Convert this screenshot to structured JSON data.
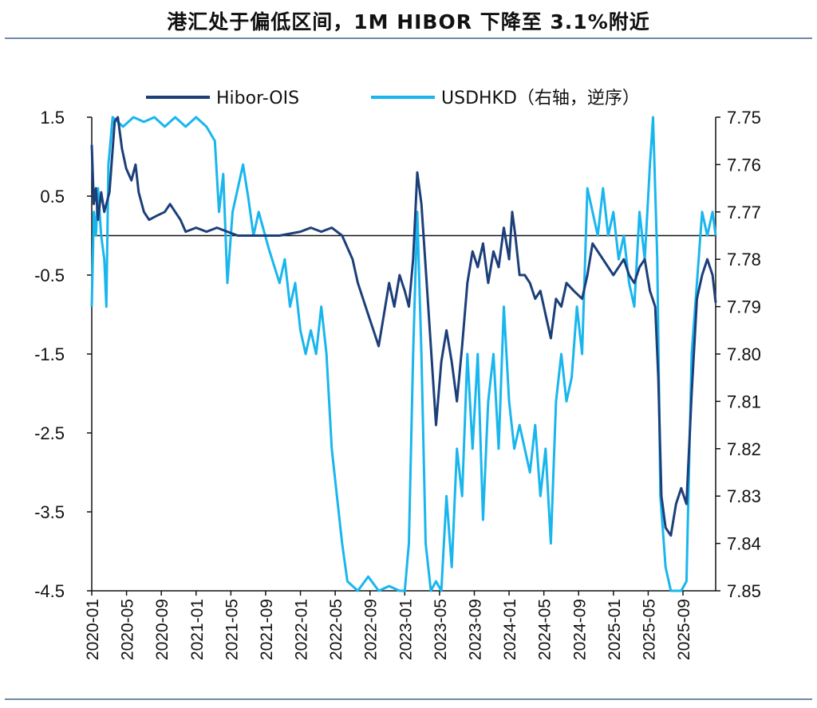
{
  "title": "港汇处于偏低区间，1M HIBOR 下降至 3.1%附近",
  "chart_data": {
    "type": "line",
    "title": "港汇处于偏低区间，1M HIBOR 下降至 3.1%附近",
    "x_range": [
      "2020-01",
      "2025-12"
    ],
    "x_tick_labels": [
      "2020-01",
      "2020-05",
      "2020-09",
      "2021-01",
      "2021-05",
      "2021-09",
      "2022-01",
      "2022-05",
      "2022-09",
      "2023-01",
      "2023-05",
      "2023-09",
      "2024-01",
      "2024-05",
      "2024-09",
      "2025-01",
      "2025-05",
      "2025-09"
    ],
    "left_axis": {
      "ylim": [
        -4.5,
        1.5
      ],
      "ticks": [
        "1.5",
        "0.5",
        "-0.5",
        "-1.5",
        "-2.5",
        "-3.5",
        "-4.5"
      ]
    },
    "right_axis": {
      "ylim": [
        7.75,
        7.85
      ],
      "reversed": true,
      "ticks": [
        "7.75",
        "7.76",
        "7.77",
        "7.78",
        "7.79",
        "7.80",
        "7.81",
        "7.82",
        "7.83",
        "7.84",
        "7.85"
      ]
    },
    "zero_line": 0,
    "colors": {
      "hibor": "#1c3f7a",
      "usdhkd": "#19b6ee",
      "axis": "#111111"
    },
    "series": [
      {
        "name": "Hibor-OIS",
        "axis": "left",
        "points": [
          [
            2020.0,
            1.15
          ],
          [
            2020.02,
            0.4
          ],
          [
            2020.04,
            0.6
          ],
          [
            2020.06,
            0.2
          ],
          [
            2020.09,
            0.55
          ],
          [
            2020.12,
            0.3
          ],
          [
            2020.17,
            0.55
          ],
          [
            2020.22,
            1.45
          ],
          [
            2020.25,
            1.5
          ],
          [
            2020.29,
            1.1
          ],
          [
            2020.33,
            0.85
          ],
          [
            2020.38,
            0.7
          ],
          [
            2020.42,
            0.9
          ],
          [
            2020.45,
            0.55
          ],
          [
            2020.5,
            0.3
          ],
          [
            2020.55,
            0.2
          ],
          [
            2020.62,
            0.25
          ],
          [
            2020.7,
            0.3
          ],
          [
            2020.75,
            0.4
          ],
          [
            2020.8,
            0.3
          ],
          [
            2020.85,
            0.2
          ],
          [
            2020.9,
            0.05
          ],
          [
            2021.0,
            0.1
          ],
          [
            2021.1,
            0.05
          ],
          [
            2021.2,
            0.1
          ],
          [
            2021.3,
            0.05
          ],
          [
            2021.4,
            0.0
          ],
          [
            2021.6,
            0.0
          ],
          [
            2021.8,
            0.0
          ],
          [
            2022.0,
            0.05
          ],
          [
            2022.1,
            0.1
          ],
          [
            2022.2,
            0.05
          ],
          [
            2022.3,
            0.1
          ],
          [
            2022.4,
            0.0
          ],
          [
            2022.5,
            -0.3
          ],
          [
            2022.55,
            -0.6
          ],
          [
            2022.6,
            -0.8
          ],
          [
            2022.65,
            -1.0
          ],
          [
            2022.7,
            -1.2
          ],
          [
            2022.75,
            -1.4
          ],
          [
            2022.8,
            -1.0
          ],
          [
            2022.85,
            -0.6
          ],
          [
            2022.9,
            -0.9
          ],
          [
            2022.95,
            -0.5
          ],
          [
            2023.0,
            -0.7
          ],
          [
            2023.04,
            -0.9
          ],
          [
            2023.08,
            -0.3
          ],
          [
            2023.12,
            0.8
          ],
          [
            2023.16,
            0.4
          ],
          [
            2023.2,
            -0.4
          ],
          [
            2023.25,
            -1.4
          ],
          [
            2023.3,
            -2.4
          ],
          [
            2023.35,
            -1.6
          ],
          [
            2023.4,
            -1.2
          ],
          [
            2023.45,
            -1.6
          ],
          [
            2023.5,
            -2.1
          ],
          [
            2023.55,
            -1.4
          ],
          [
            2023.6,
            -0.6
          ],
          [
            2023.65,
            -0.2
          ],
          [
            2023.7,
            -0.4
          ],
          [
            2023.75,
            -0.1
          ],
          [
            2023.8,
            -0.6
          ],
          [
            2023.85,
            -0.2
          ],
          [
            2023.9,
            -0.4
          ],
          [
            2023.95,
            0.1
          ],
          [
            2024.0,
            -0.3
          ],
          [
            2024.03,
            0.3
          ],
          [
            2024.06,
            0.0
          ],
          [
            2024.1,
            -0.5
          ],
          [
            2024.15,
            -0.5
          ],
          [
            2024.2,
            -0.6
          ],
          [
            2024.25,
            -0.8
          ],
          [
            2024.3,
            -0.7
          ],
          [
            2024.35,
            -1.0
          ],
          [
            2024.4,
            -1.3
          ],
          [
            2024.45,
            -0.8
          ],
          [
            2024.5,
            -0.9
          ],
          [
            2024.55,
            -0.6
          ],
          [
            2024.62,
            -0.7
          ],
          [
            2024.7,
            -0.8
          ],
          [
            2024.75,
            -0.5
          ],
          [
            2024.8,
            -0.1
          ],
          [
            2024.9,
            -0.3
          ],
          [
            2025.0,
            -0.5
          ],
          [
            2025.05,
            -0.4
          ],
          [
            2025.1,
            -0.3
          ],
          [
            2025.15,
            -0.5
          ],
          [
            2025.2,
            -0.6
          ],
          [
            2025.25,
            -0.4
          ],
          [
            2025.3,
            -0.3
          ],
          [
            2025.35,
            -0.7
          ],
          [
            2025.4,
            -0.9
          ],
          [
            2025.43,
            -1.8
          ],
          [
            2025.46,
            -3.3
          ],
          [
            2025.5,
            -3.7
          ],
          [
            2025.55,
            -3.8
          ],
          [
            2025.6,
            -3.4
          ],
          [
            2025.65,
            -3.2
          ],
          [
            2025.7,
            -3.4
          ],
          [
            2025.75,
            -2.0
          ],
          [
            2025.8,
            -0.8
          ],
          [
            2025.85,
            -0.5
          ],
          [
            2025.9,
            -0.3
          ],
          [
            2025.95,
            -0.5
          ],
          [
            2025.98,
            -0.85
          ]
        ]
      },
      {
        "name": "USDHKD（右轴，逆序）",
        "axis": "right",
        "points": [
          [
            2020.0,
            7.79
          ],
          [
            2020.02,
            7.77
          ],
          [
            2020.04,
            7.775
          ],
          [
            2020.06,
            7.765
          ],
          [
            2020.09,
            7.775
          ],
          [
            2020.12,
            7.78
          ],
          [
            2020.14,
            7.79
          ],
          [
            2020.16,
            7.76
          ],
          [
            2020.2,
            7.75
          ],
          [
            2020.3,
            7.752
          ],
          [
            2020.4,
            7.75
          ],
          [
            2020.5,
            7.751
          ],
          [
            2020.6,
            7.75
          ],
          [
            2020.7,
            7.752
          ],
          [
            2020.8,
            7.75
          ],
          [
            2020.9,
            7.752
          ],
          [
            2021.0,
            7.75
          ],
          [
            2021.1,
            7.752
          ],
          [
            2021.18,
            7.755
          ],
          [
            2021.22,
            7.77
          ],
          [
            2021.26,
            7.762
          ],
          [
            2021.3,
            7.785
          ],
          [
            2021.35,
            7.77
          ],
          [
            2021.4,
            7.765
          ],
          [
            2021.45,
            7.76
          ],
          [
            2021.5,
            7.767
          ],
          [
            2021.55,
            7.775
          ],
          [
            2021.6,
            7.77
          ],
          [
            2021.7,
            7.778
          ],
          [
            2021.8,
            7.785
          ],
          [
            2021.85,
            7.78
          ],
          [
            2021.9,
            7.79
          ],
          [
            2021.95,
            7.785
          ],
          [
            2022.0,
            7.795
          ],
          [
            2022.05,
            7.8
          ],
          [
            2022.1,
            7.795
          ],
          [
            2022.15,
            7.8
          ],
          [
            2022.2,
            7.79
          ],
          [
            2022.25,
            7.8
          ],
          [
            2022.3,
            7.82
          ],
          [
            2022.35,
            7.83
          ],
          [
            2022.4,
            7.84
          ],
          [
            2022.45,
            7.848
          ],
          [
            2022.55,
            7.85
          ],
          [
            2022.65,
            7.847
          ],
          [
            2022.75,
            7.85
          ],
          [
            2022.85,
            7.849
          ],
          [
            2022.95,
            7.85
          ],
          [
            2023.0,
            7.85
          ],
          [
            2023.04,
            7.84
          ],
          [
            2023.08,
            7.8
          ],
          [
            2023.12,
            7.77
          ],
          [
            2023.16,
            7.8
          ],
          [
            2023.2,
            7.84
          ],
          [
            2023.25,
            7.85
          ],
          [
            2023.3,
            7.848
          ],
          [
            2023.35,
            7.85
          ],
          [
            2023.4,
            7.83
          ],
          [
            2023.45,
            7.845
          ],
          [
            2023.5,
            7.82
          ],
          [
            2023.55,
            7.83
          ],
          [
            2023.6,
            7.8
          ],
          [
            2023.65,
            7.82
          ],
          [
            2023.7,
            7.8
          ],
          [
            2023.75,
            7.835
          ],
          [
            2023.8,
            7.81
          ],
          [
            2023.85,
            7.8
          ],
          [
            2023.9,
            7.82
          ],
          [
            2023.95,
            7.79
          ],
          [
            2024.0,
            7.81
          ],
          [
            2024.05,
            7.82
          ],
          [
            2024.1,
            7.815
          ],
          [
            2024.15,
            7.82
          ],
          [
            2024.2,
            7.825
          ],
          [
            2024.25,
            7.815
          ],
          [
            2024.3,
            7.83
          ],
          [
            2024.35,
            7.82
          ],
          [
            2024.4,
            7.84
          ],
          [
            2024.45,
            7.81
          ],
          [
            2024.5,
            7.8
          ],
          [
            2024.55,
            7.81
          ],
          [
            2024.6,
            7.805
          ],
          [
            2024.65,
            7.79
          ],
          [
            2024.7,
            7.8
          ],
          [
            2024.75,
            7.765
          ],
          [
            2024.8,
            7.77
          ],
          [
            2024.85,
            7.775
          ],
          [
            2024.9,
            7.765
          ],
          [
            2024.95,
            7.775
          ],
          [
            2025.0,
            7.77
          ],
          [
            2025.05,
            7.78
          ],
          [
            2025.1,
            7.775
          ],
          [
            2025.15,
            7.785
          ],
          [
            2025.2,
            7.79
          ],
          [
            2025.25,
            7.77
          ],
          [
            2025.3,
            7.78
          ],
          [
            2025.35,
            7.76
          ],
          [
            2025.38,
            7.75
          ],
          [
            2025.42,
            7.78
          ],
          [
            2025.45,
            7.83
          ],
          [
            2025.5,
            7.845
          ],
          [
            2025.55,
            7.85
          ],
          [
            2025.6,
            7.85
          ],
          [
            2025.65,
            7.85
          ],
          [
            2025.7,
            7.848
          ],
          [
            2025.75,
            7.8
          ],
          [
            2025.8,
            7.785
          ],
          [
            2025.85,
            7.77
          ],
          [
            2025.9,
            7.775
          ],
          [
            2025.95,
            7.77
          ],
          [
            2025.98,
            7.775
          ]
        ]
      }
    ]
  }
}
